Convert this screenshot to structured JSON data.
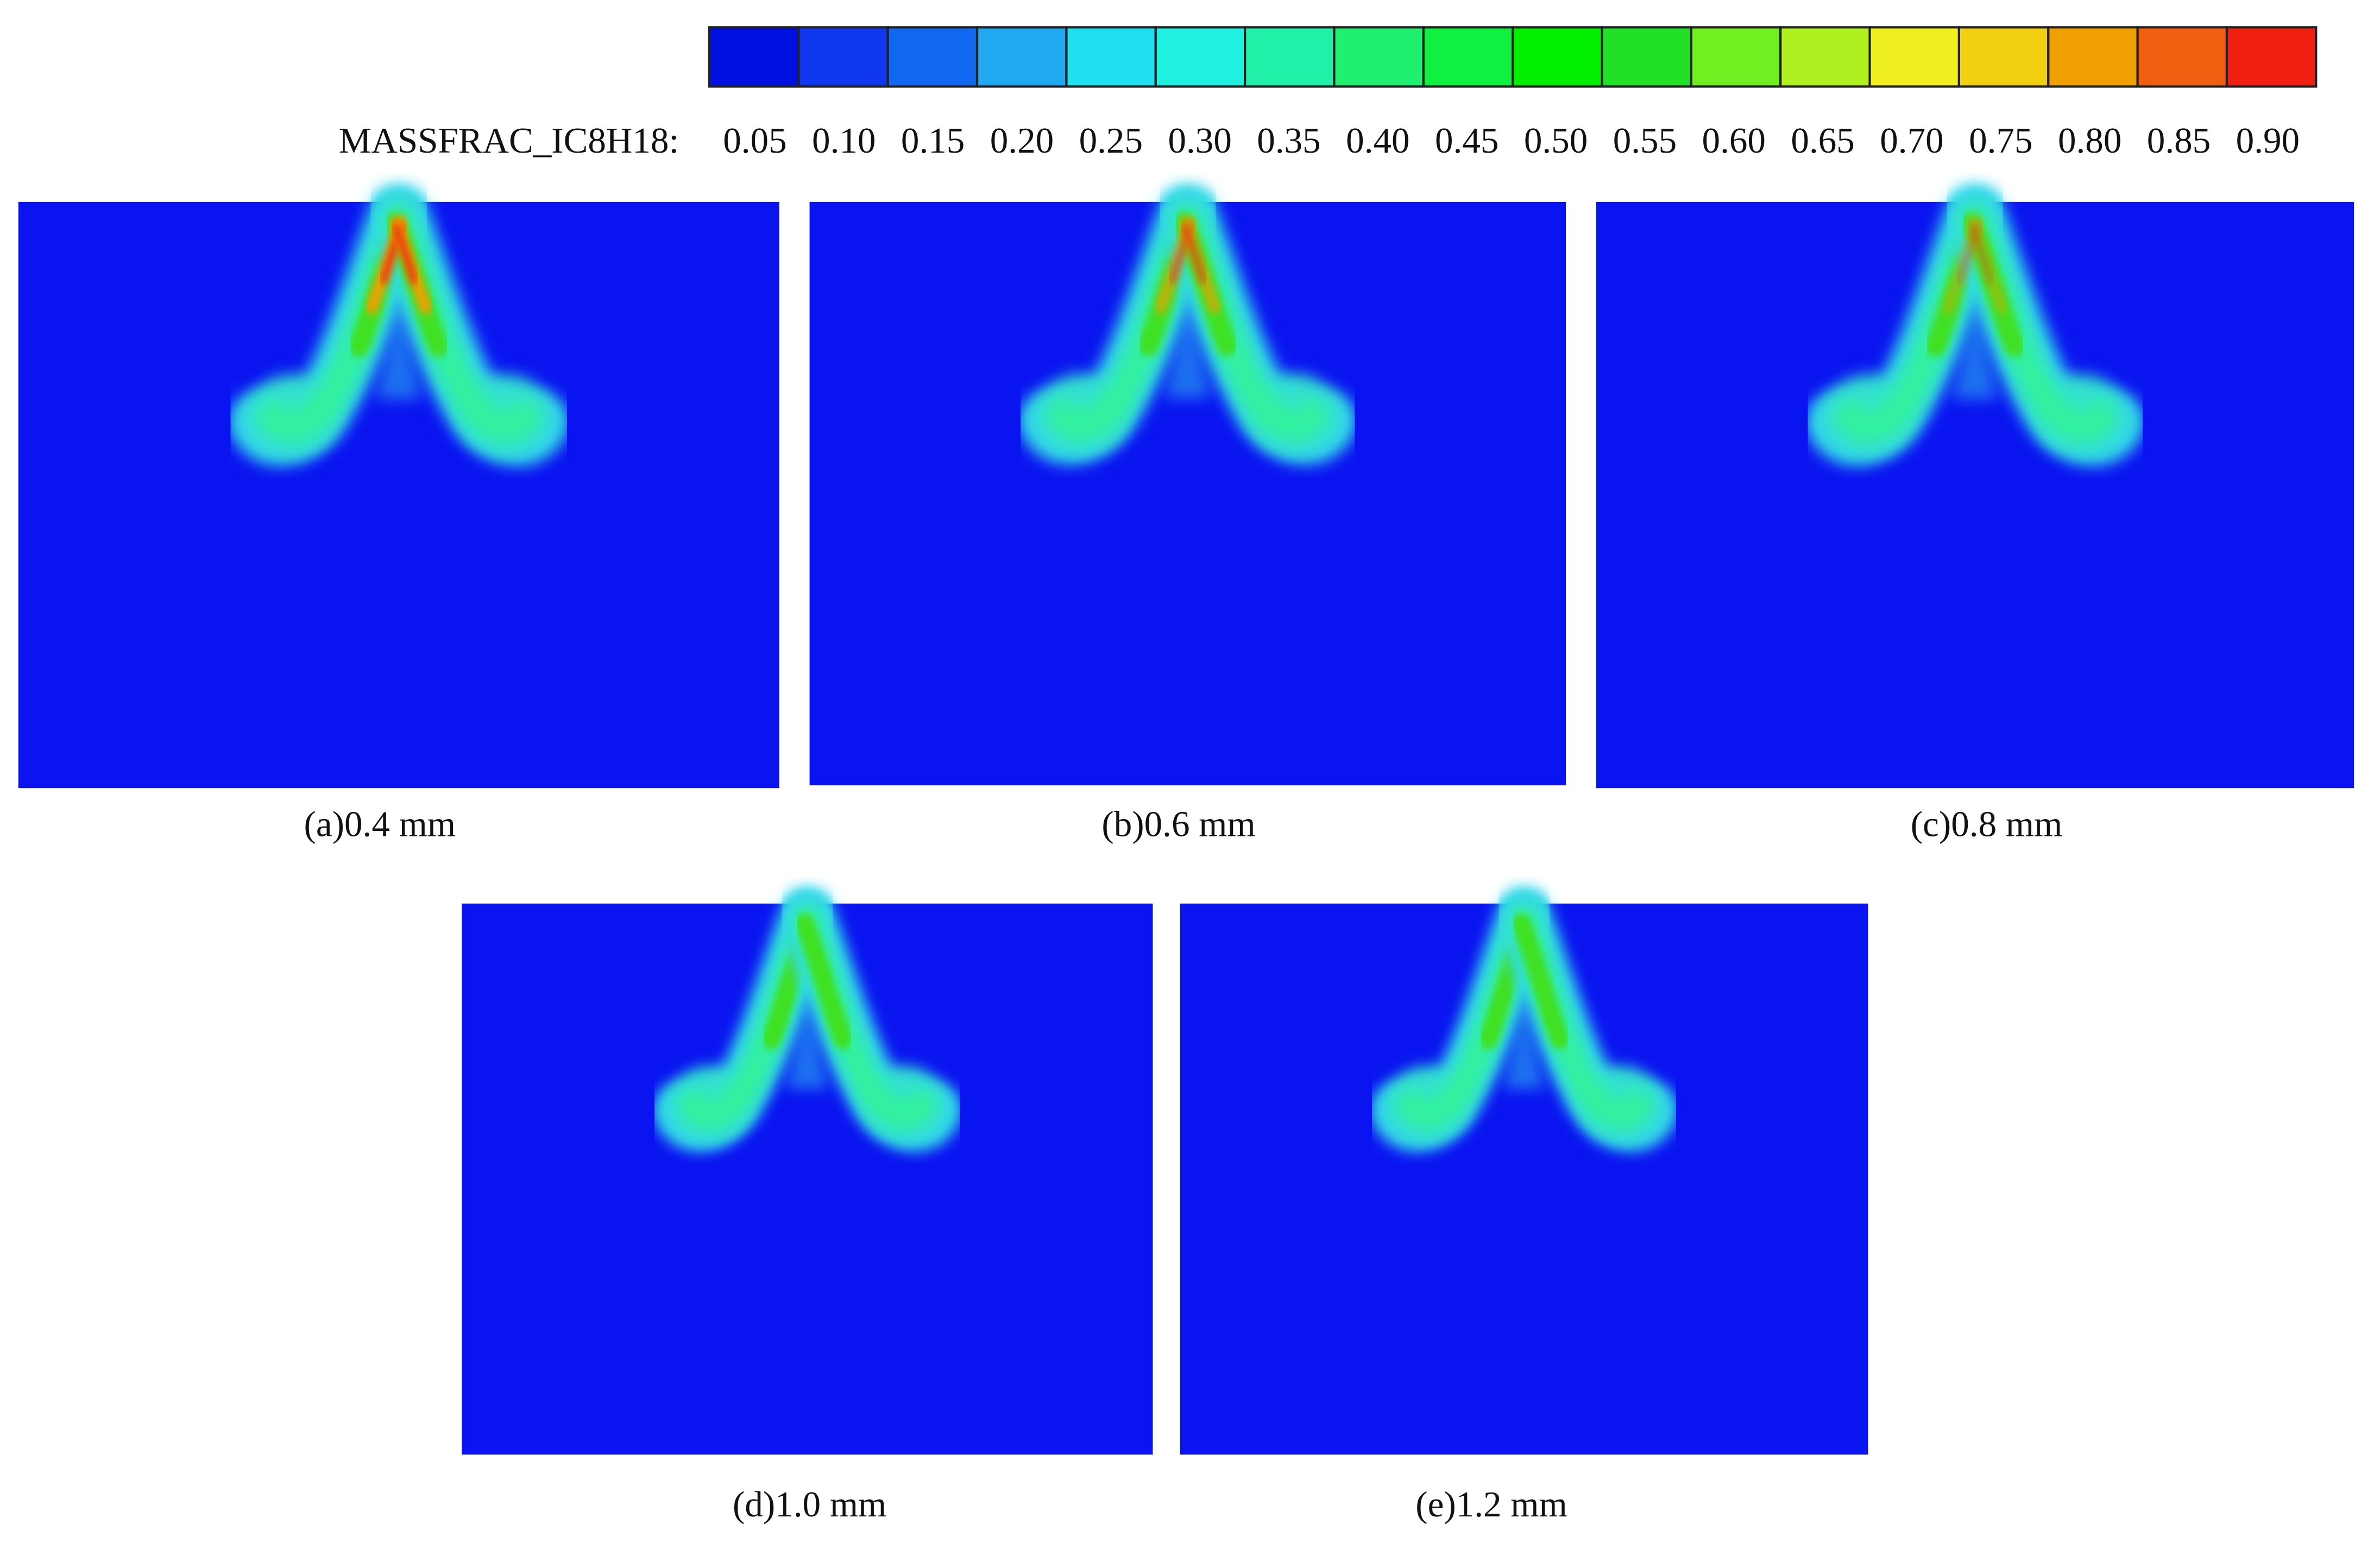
{
  "colorbar": {
    "label": "MASSFRAC_IC8H18:",
    "ticks": [
      "0.05",
      "0.10",
      "0.15",
      "0.20",
      "0.25",
      "0.30",
      "0.35",
      "0.40",
      "0.45",
      "0.50",
      "0.55",
      "0.60",
      "0.65",
      "0.70",
      "0.75",
      "0.80",
      "0.85",
      "0.90"
    ],
    "colors": [
      "#0010e0",
      "#1038f0",
      "#1068f0",
      "#20a8f0",
      "#20e0f0",
      "#20f0e0",
      "#20f0a8",
      "#20f070",
      "#10f040",
      "#00f000",
      "#20e028",
      "#70f020",
      "#b0f020",
      "#f0f020",
      "#f0d010",
      "#f0a000",
      "#f06010",
      "#f02010"
    ]
  },
  "panels": [
    {
      "caption": "(a)0.4 mm"
    },
    {
      "caption": "(b)0.6 mm"
    },
    {
      "caption": "(c)0.8 mm"
    },
    {
      "caption": "(d)1.0 mm"
    },
    {
      "caption": "(e)1.2 mm"
    }
  ]
}
